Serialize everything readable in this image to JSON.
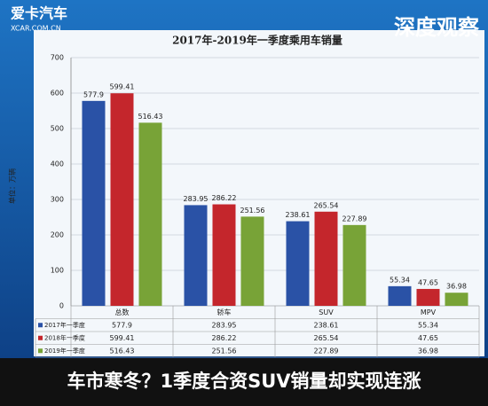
{
  "brand": {
    "name": "爱卡汽车",
    "site": "XCAR.COM.CN",
    "column": "深度观察"
  },
  "banner": "车市寒冬？1季度合资SUV销量却实现连涨",
  "chart_data": {
    "type": "bar",
    "title": "2017年-2019年一季度乘用车销量",
    "y_label": "单位：万辆",
    "categories": [
      "总数",
      "轿车",
      "SUV",
      "MPV"
    ],
    "series": [
      {
        "name": "2017年一季度",
        "color": "#2a52a6",
        "values": [
          577.9,
          283.95,
          238.61,
          55.34
        ]
      },
      {
        "name": "2018年一季度",
        "color": "#c4262c",
        "values": [
          599.41,
          286.22,
          265.54,
          47.65
        ]
      },
      {
        "name": "2019年一季度",
        "color": "#78a337",
        "values": [
          516.43,
          251.56,
          227.89,
          36.98
        ]
      }
    ],
    "ylim": [
      0,
      700
    ],
    "yticks": [
      0,
      100,
      200,
      300,
      400,
      500,
      600,
      700
    ],
    "grid": true
  }
}
